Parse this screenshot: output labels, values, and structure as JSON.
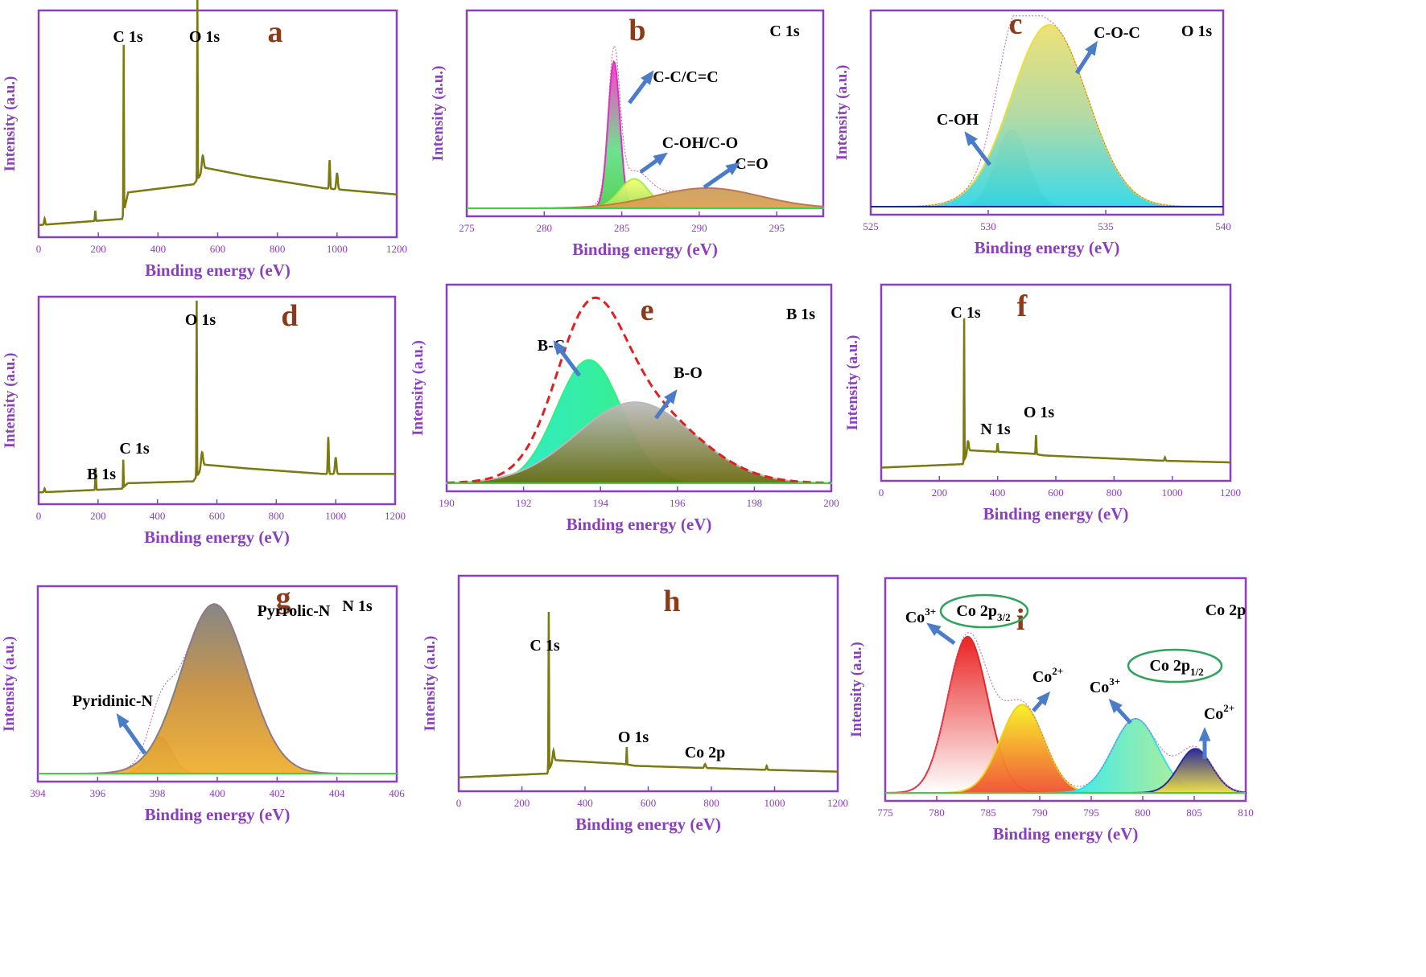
{
  "figure": {
    "bg": "#ffffff",
    "frame_color": "#8a3fc0",
    "spectrum_color": "#7a7a10",
    "arrow_color": "#4a7cc9"
  },
  "chart_data": [
    {
      "id": "a",
      "type": "line",
      "panel_letter": "a",
      "core_label": "",
      "xlabel": "Binding energy (eV)",
      "ylabel": "Intensity (a.u.)",
      "xlim": [
        0,
        1200
      ],
      "xticks": [
        0,
        200,
        400,
        600,
        800,
        1000,
        1200
      ],
      "annotations": [
        {
          "text": "C 1s",
          "x": 285
        },
        {
          "text": "O 1s",
          "x": 532
        }
      ],
      "series": [
        {
          "kind": "survey",
          "baseline": 0.02,
          "segments": [
            [
              0,
              0.02
            ],
            [
              280,
              0.05
            ],
            [
              300,
              0.18
            ],
            [
              520,
              0.22
            ],
            [
              560,
              0.3
            ],
            [
              700,
              0.26
            ],
            [
              960,
              0.2
            ],
            [
              1200,
              0.17
            ]
          ],
          "peaks": [
            [
              20,
              0.03,
              4
            ],
            [
              190,
              0.05,
              3
            ],
            [
              285,
              0.82,
              2
            ],
            [
              532,
              0.88,
              2
            ],
            [
              550,
              0.08,
              8
            ],
            [
              975,
              0.14,
              4
            ],
            [
              1000,
              0.08,
              6
            ]
          ]
        }
      ]
    },
    {
      "id": "b",
      "type": "line",
      "panel_letter": "b",
      "core_label": "C 1s",
      "xlabel": "Binding energy (eV)",
      "ylabel": "Intensity (a.u.)",
      "xlim": [
        275,
        298
      ],
      "xticks": [
        275,
        280,
        285,
        290,
        295
      ],
      "annotations": [
        {
          "text": "C-C/C=C"
        },
        {
          "text": "C-OH/C-O"
        },
        {
          "text": "C=O"
        }
      ],
      "series": [
        {
          "name": "C-C/C=C",
          "center": 284.5,
          "amplitude": 0.8,
          "fwhm": 0.9,
          "color": "#e030c0"
        },
        {
          "name": "C-OH/C-O",
          "center": 285.8,
          "amplitude": 0.16,
          "fwhm": 2.2,
          "color": "#a0f050"
        },
        {
          "name": "C=O",
          "center": 290.5,
          "amplitude": 0.11,
          "fwhm": 8.0,
          "color": "#c08030"
        }
      ]
    },
    {
      "id": "c",
      "type": "line",
      "panel_letter": "c",
      "core_label": "O 1s",
      "xlabel": "Binding energy (eV)",
      "ylabel": "Intensity (a.u.)",
      "xlim": [
        525,
        540
      ],
      "xticks": [
        525,
        530,
        535,
        540
      ],
      "annotations": [
        {
          "text": "C-OH"
        },
        {
          "text": "C-O-C"
        }
      ],
      "series": [
        {
          "name": "C-OH",
          "center": 531.0,
          "amplitude": 0.42,
          "fwhm": 1.6,
          "color": "#30e0e0"
        },
        {
          "name": "C-O-C",
          "center": 532.6,
          "amplitude": 1.0,
          "fwhm": 3.8,
          "color": "#e8e040"
        }
      ]
    },
    {
      "id": "d",
      "type": "line",
      "panel_letter": "d",
      "core_label": "",
      "xlabel": "Binding energy (eV)",
      "ylabel": "Intensity (a.u.)",
      "xlim": [
        0,
        1200
      ],
      "xticks": [
        0,
        200,
        400,
        600,
        800,
        1000,
        1200
      ],
      "annotations": [
        {
          "text": "B 1s",
          "x": 192
        },
        {
          "text": "C 1s",
          "x": 285
        },
        {
          "text": "O 1s",
          "x": 532
        }
      ],
      "series": [
        {
          "kind": "survey",
          "baseline": 0.02,
          "segments": [
            [
              0,
              0.02
            ],
            [
              280,
              0.04
            ],
            [
              300,
              0.07
            ],
            [
              520,
              0.08
            ],
            [
              560,
              0.17
            ],
            [
              700,
              0.15
            ],
            [
              960,
              0.12
            ],
            [
              1200,
              0.12
            ]
          ],
          "peaks": [
            [
              20,
              0.02,
              4
            ],
            [
              192,
              0.12,
              3
            ],
            [
              285,
              0.15,
              2
            ],
            [
              532,
              0.95,
              2
            ],
            [
              550,
              0.09,
              8
            ],
            [
              975,
              0.2,
              4
            ],
            [
              1000,
              0.09,
              6
            ]
          ]
        }
      ]
    },
    {
      "id": "e",
      "type": "line",
      "panel_letter": "e",
      "core_label": "B 1s",
      "xlabel": "Binding energy (eV)",
      "ylabel": "Intensity (a.u.)",
      "xlim": [
        190,
        200
      ],
      "xticks": [
        190,
        192,
        194,
        196,
        198,
        200
      ],
      "annotations": [
        {
          "text": "B-C"
        },
        {
          "text": "B-O"
        }
      ],
      "series": [
        {
          "name": "B-C",
          "center": 193.7,
          "amplitude": 0.67,
          "fwhm": 2.0,
          "color": "#30f080"
        },
        {
          "name": "B-O",
          "center": 194.9,
          "amplitude": 0.44,
          "fwhm": 3.6,
          "color": "#b8b8b8"
        }
      ]
    },
    {
      "id": "f",
      "type": "line",
      "panel_letter": "f",
      "core_label": "",
      "xlabel": "Binding energy (eV)",
      "ylabel": "Intensity (a.u.)",
      "xlim": [
        0,
        1200
      ],
      "xticks": [
        0,
        200,
        400,
        600,
        800,
        1000,
        1200
      ],
      "annotations": [
        {
          "text": "C 1s",
          "x": 285
        },
        {
          "text": "N 1s",
          "x": 400
        },
        {
          "text": "O 1s",
          "x": 532
        }
      ],
      "series": [
        {
          "kind": "survey",
          "baseline": 0.03,
          "segments": [
            [
              0,
              0.03
            ],
            [
              280,
              0.05
            ],
            [
              300,
              0.13
            ],
            [
              520,
              0.11
            ],
            [
              560,
              0.1
            ],
            [
              960,
              0.07
            ],
            [
              1200,
              0.06
            ]
          ],
          "peaks": [
            [
              285,
              0.82,
              2
            ],
            [
              298,
              0.06,
              6
            ],
            [
              400,
              0.05,
              3
            ],
            [
              532,
              0.11,
              3
            ],
            [
              975,
              0.02,
              4
            ]
          ]
        }
      ]
    },
    {
      "id": "g",
      "type": "line",
      "panel_letter": "g",
      "core_label": "N 1s",
      "xlabel": "Binding energy (eV)",
      "ylabel": "Intensity (a.u.)",
      "xlim": [
        394,
        406
      ],
      "xticks": [
        394,
        396,
        398,
        400,
        402,
        404,
        406
      ],
      "annotations": [
        {
          "text": "Pyridinic-N"
        },
        {
          "text": "Pyrrolic-N"
        }
      ],
      "series": [
        {
          "name": "Pyridinic-N",
          "center": 398.1,
          "amplitude": 0.21,
          "fwhm": 0.9,
          "color": "#e04040"
        },
        {
          "name": "Pyrrolic-N",
          "center": 399.9,
          "amplitude": 0.98,
          "fwhm": 2.6,
          "color": "#808080"
        }
      ]
    },
    {
      "id": "h",
      "type": "line",
      "panel_letter": "h",
      "core_label": "",
      "xlabel": "Binding energy (eV)",
      "ylabel": "Intensity (a.u.)",
      "xlim": [
        0,
        1200
      ],
      "xticks": [
        0,
        200,
        400,
        600,
        800,
        1000,
        1200
      ],
      "annotations": [
        {
          "text": "C 1s",
          "x": 285
        },
        {
          "text": "O 1s",
          "x": 532
        },
        {
          "text": "Co 2p",
          "x": 780
        }
      ],
      "series": [
        {
          "kind": "survey",
          "baseline": 0.03,
          "segments": [
            [
              0,
              0.03
            ],
            [
              280,
              0.05
            ],
            [
              300,
              0.12
            ],
            [
              520,
              0.1
            ],
            [
              560,
              0.09
            ],
            [
              960,
              0.07
            ],
            [
              1200,
              0.06
            ]
          ],
          "peaks": [
            [
              285,
              0.82,
              2
            ],
            [
              300,
              0.05,
              6
            ],
            [
              532,
              0.09,
              2
            ],
            [
              780,
              0.02,
              6
            ],
            [
              975,
              0.02,
              4
            ]
          ]
        }
      ]
    },
    {
      "id": "i",
      "type": "line",
      "panel_letter": "i",
      "core_label": "Co 2p",
      "xlabel": "Binding energy (eV)",
      "ylabel": "Intensity (a.u.)",
      "xlim": [
        775,
        810
      ],
      "xticks": [
        775,
        780,
        785,
        790,
        795,
        800,
        805,
        810
      ],
      "annotations": [
        {
          "text": "Co",
          "sup": "3+"
        },
        {
          "text": "Co 2p",
          "sub": "3/2"
        },
        {
          "text": "Co",
          "sup": "2+"
        },
        {
          "text": "Co",
          "sup": "3+"
        },
        {
          "text": "Co 2p",
          "sub": "1/2"
        },
        {
          "text": "Co",
          "sup": "2+"
        }
      ],
      "series": [
        {
          "name": "Co3+ (2p3/2)",
          "center": 783.0,
          "amplitude": 0.78,
          "fwhm": 4.6,
          "color": "#e82828"
        },
        {
          "name": "Co2+ (2p3/2)",
          "center": 788.3,
          "amplitude": 0.44,
          "fwhm": 5.0,
          "color": "#f0d020"
        },
        {
          "name": "Co3+ (2p1/2)",
          "center": 799.3,
          "amplitude": 0.37,
          "fwhm": 5.2,
          "color": "#30e0f0"
        },
        {
          "name": "Co2+ (2p1/2)",
          "center": 805.1,
          "amplitude": 0.22,
          "fwhm": 3.8,
          "color": "#2828a0"
        }
      ]
    }
  ]
}
